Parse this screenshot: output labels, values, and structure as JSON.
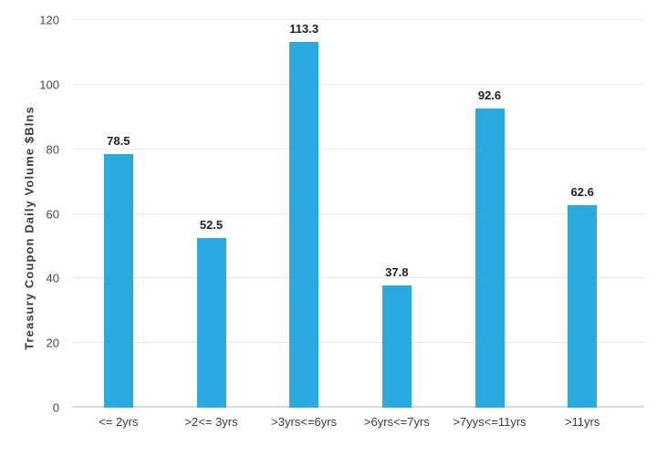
{
  "chart_data": {
    "type": "bar",
    "title": "",
    "categories": [
      "<= 2yrs",
      ">2<= 3yrs",
      ">3yrs<=6yrs",
      ">6yrs<=7yrs",
      ">7yys<=11yrs",
      ">11yrs"
    ],
    "values": [
      78.5,
      52.5,
      113.3,
      37.8,
      92.6,
      62.6
    ],
    "value_labels": [
      "78.5",
      "52.5",
      "113.3",
      "37.8",
      "92.6",
      "62.6"
    ],
    "xlabel": "",
    "ylabel": "Treasury Coupon Daily Volume $Blns",
    "ylim": [
      0,
      120
    ],
    "yticks": [
      0,
      20,
      40,
      60,
      80,
      100,
      120
    ],
    "grid": true,
    "legend": "none",
    "colors": {
      "bar": "#29ABE2",
      "gridline": "#e8e8e8",
      "baseline": "#d9d9d9",
      "tick_text": "#4a4a4a",
      "value_text": "#1f1f1f",
      "axis_title_text": "#3a3a44",
      "background": "#ffffff"
    }
  }
}
